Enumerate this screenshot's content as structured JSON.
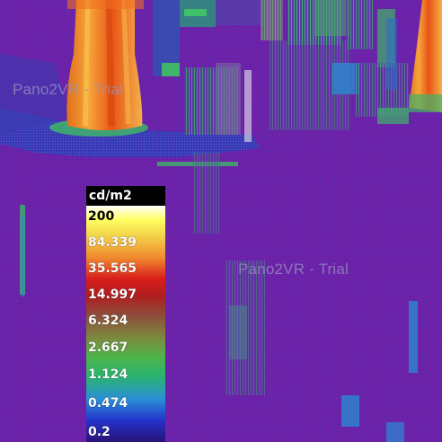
{
  "watermark_text": "Pano2VR - Trial",
  "legend": {
    "unit": "cd/m2",
    "ticks": [
      "200",
      "84.339",
      "35.565",
      "14.997",
      "6.324",
      "2.667",
      "1.124",
      "0.474",
      "0.2"
    ]
  },
  "colors": {
    "background": "#6b21a8",
    "hot": "#f05a1a",
    "warm": "#f3d84c",
    "cool": "#2ab46e",
    "cold": "#2232c8"
  }
}
